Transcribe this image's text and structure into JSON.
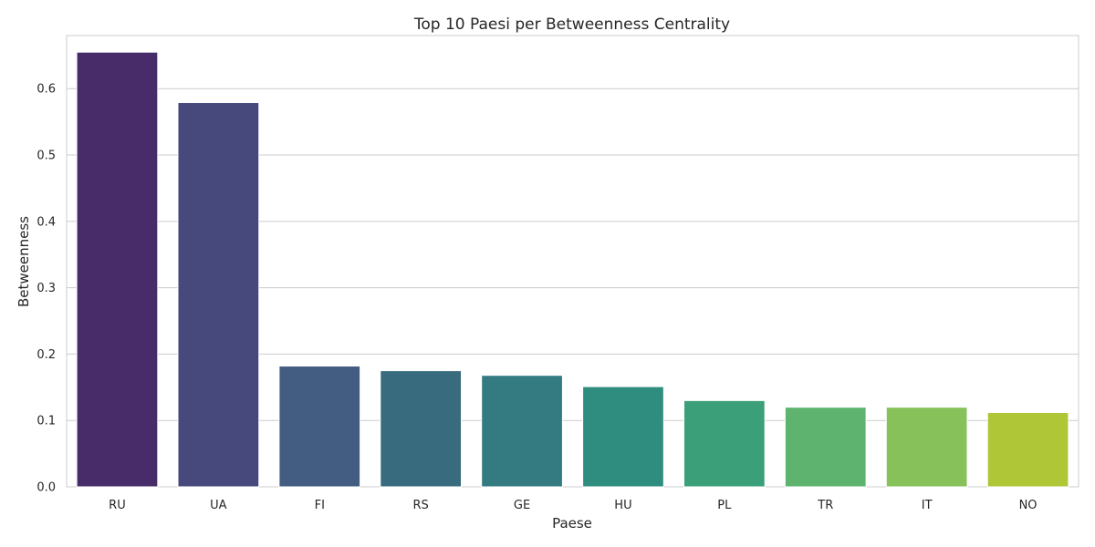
{
  "chart_data": {
    "type": "bar",
    "title": "Top 10 Paesi per Betweenness Centrality",
    "xlabel": "Paese",
    "ylabel": "Betweenness",
    "categories": [
      "RU",
      "UA",
      "FI",
      "RS",
      "GE",
      "HU",
      "PL",
      "TR",
      "IT",
      "NO"
    ],
    "values": [
      0.655,
      0.579,
      0.182,
      0.175,
      0.168,
      0.151,
      0.13,
      0.12,
      0.12,
      0.112
    ],
    "colors": [
      "#482B69",
      "#47497D",
      "#425C82",
      "#386B7E",
      "#337A81",
      "#2E8D7E",
      "#3BA079",
      "#5EB36F",
      "#86C15A",
      "#AFC636"
    ],
    "ylim": [
      0,
      0.68
    ],
    "yticks": [
      "0.0",
      "0.1",
      "0.2",
      "0.3",
      "0.4",
      "0.5",
      "0.6"
    ],
    "grid": true,
    "legend": "none"
  }
}
